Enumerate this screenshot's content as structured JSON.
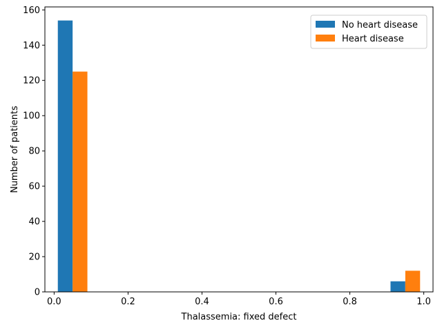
{
  "chart_data": {
    "type": "bar",
    "xlabel": "Thalassemia: fixed defect",
    "ylabel": "Number of patients",
    "xlim": [
      -0.025,
      1.025
    ],
    "ylim": [
      0,
      161.7
    ],
    "xticks": [
      "0.0",
      "0.2",
      "0.4",
      "0.6",
      "0.8",
      "1.0"
    ],
    "yticks": [
      "0",
      "20",
      "40",
      "60",
      "80",
      "100",
      "120",
      "140",
      "160"
    ],
    "legend_position": "top-right",
    "grid": false,
    "bin_edges": [
      0.0,
      0.1,
      0.2,
      0.3,
      0.4,
      0.5,
      0.6,
      0.7,
      0.8,
      0.9,
      1.0
    ],
    "series": [
      {
        "name": "No heart disease",
        "color": "#1f77b4",
        "values": [
          154,
          0,
          0,
          0,
          0,
          0,
          0,
          0,
          0,
          6
        ]
      },
      {
        "name": "Heart disease",
        "color": "#ff7f0e",
        "values": [
          125,
          0,
          0,
          0,
          0,
          0,
          0,
          0,
          0,
          12
        ]
      }
    ]
  }
}
